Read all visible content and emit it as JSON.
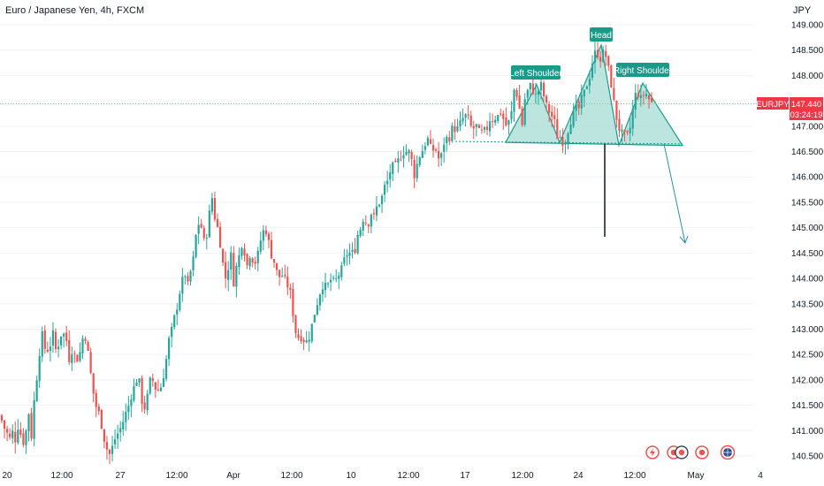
{
  "header": {
    "title": "Euro / Japanese Yen, 4h, FXCM",
    "currency": "JPY"
  },
  "price_tag": {
    "symbol": "EURJPY",
    "price": "147.440",
    "countdown": "03:24:19"
  },
  "colors": {
    "up": "#26a69a",
    "down": "#ef5350",
    "pattern_fill": "#a7dcd4",
    "pattern_stroke": "#1a9b89",
    "label_bg": "#1a9b89",
    "price_line": "#f28b8b"
  },
  "annotations": {
    "left_shoulder": "Left Shoulder",
    "head": "Head",
    "right_shoulder": "Right Shoulder"
  },
  "event_icons": [
    "flash-icon",
    "flag-icon",
    "flag-icon",
    "flag-icon",
    "globe-icon"
  ],
  "chart_data": {
    "type": "candlestick",
    "title": "Euro / Japanese Yen, 4h, FXCM",
    "ylim": [
      140.4,
      149.2
    ],
    "y_ticks": [
      "149.000",
      "148.500",
      "148.000",
      "147.500",
      "147.000",
      "146.500",
      "146.000",
      "145.500",
      "145.000",
      "144.500",
      "144.000",
      "143.500",
      "143.000",
      "142.500",
      "142.000",
      "141.500",
      "141.000",
      "140.500"
    ],
    "x_ticks": [
      "20",
      "12:00",
      "27",
      "12:00",
      "Apr",
      "12:00",
      "10",
      "12:00",
      "17",
      "12:00",
      "24",
      "12:00",
      "May",
      "4"
    ],
    "last_price": 147.44,
    "neckline": [
      146.7,
      146.65
    ],
    "projection_target": 144.7,
    "close_path": [
      [
        0,
        141.3
      ],
      [
        6,
        141.0
      ],
      [
        10,
        140.9
      ],
      [
        12,
        140.8
      ],
      [
        14,
        141.0
      ],
      [
        16,
        140.7
      ],
      [
        18,
        140.9
      ],
      [
        20,
        141.1
      ],
      [
        24,
        140.9
      ],
      [
        28,
        140.7
      ],
      [
        30,
        141.1
      ],
      [
        33,
        141.4
      ],
      [
        36,
        140.8
      ],
      [
        39,
        141.7
      ],
      [
        42,
        142.1
      ],
      [
        45,
        142.6
      ],
      [
        48,
        142.9
      ],
      [
        51,
        142.6
      ],
      [
        54,
        142.6
      ],
      [
        57,
        142.7
      ],
      [
        60,
        142.9
      ],
      [
        63,
        142.6
      ],
      [
        66,
        142.7
      ],
      [
        69,
        142.9
      ],
      [
        72,
        142.9
      ],
      [
        75,
        142.8
      ],
      [
        78,
        142.4
      ],
      [
        81,
        142.6
      ],
      [
        84,
        142.5
      ],
      [
        87,
        142.4
      ],
      [
        90,
        142.5
      ],
      [
        93,
        142.8
      ],
      [
        96,
        142.9
      ],
      [
        99,
        142.6
      ],
      [
        102,
        142.2
      ],
      [
        105,
        141.8
      ],
      [
        108,
        141.5
      ],
      [
        111,
        141.4
      ],
      [
        114,
        141.2
      ],
      [
        117,
        140.9
      ],
      [
        120,
        140.7
      ],
      [
        123,
        140.5
      ],
      [
        126,
        140.6
      ],
      [
        129,
        140.8
      ],
      [
        132,
        140.9
      ],
      [
        135,
        141.0
      ],
      [
        138,
        141.1
      ],
      [
        141,
        141.3
      ],
      [
        144,
        141.4
      ],
      [
        147,
        141.6
      ],
      [
        150,
        141.8
      ],
      [
        153,
        141.9
      ],
      [
        156,
        142.1
      ],
      [
        159,
        141.8
      ],
      [
        162,
        141.4
      ],
      [
        165,
        141.5
      ],
      [
        168,
        141.8
      ],
      [
        171,
        142.1
      ],
      [
        174,
        141.9
      ],
      [
        177,
        141.8
      ],
      [
        180,
        141.8
      ],
      [
        183,
        141.9
      ],
      [
        186,
        142.2
      ],
      [
        189,
        142.5
      ],
      [
        192,
        142.9
      ],
      [
        195,
        143.0
      ],
      [
        198,
        143.3
      ],
      [
        201,
        143.5
      ],
      [
        204,
        143.8
      ],
      [
        207,
        144.0
      ],
      [
        210,
        144.1
      ],
      [
        213,
        143.8
      ],
      [
        216,
        144.2
      ],
      [
        219,
        144.4
      ],
      [
        222,
        144.9
      ],
      [
        225,
        145.1
      ],
      [
        228,
        145.0
      ],
      [
        231,
        144.7
      ],
      [
        234,
        144.9
      ],
      [
        237,
        145.3
      ],
      [
        240,
        145.6
      ],
      [
        243,
        145.2
      ],
      [
        246,
        145.0
      ],
      [
        249,
        144.7
      ],
      [
        252,
        144.3
      ],
      [
        255,
        144.0
      ],
      [
        258,
        144.2
      ],
      [
        261,
        144.5
      ],
      [
        264,
        143.9
      ],
      [
        267,
        144.2
      ],
      [
        270,
        144.4
      ],
      [
        273,
        144.7
      ],
      [
        276,
        144.6
      ],
      [
        279,
        144.2
      ],
      [
        282,
        144.5
      ],
      [
        285,
        144.4
      ],
      [
        288,
        144.3
      ],
      [
        291,
        144.4
      ],
      [
        294,
        144.7
      ],
      [
        297,
        144.9
      ],
      [
        300,
        145.0
      ],
      [
        303,
        144.8
      ],
      [
        306,
        144.5
      ],
      [
        309,
        144.4
      ],
      [
        312,
        144.2
      ],
      [
        315,
        144.0
      ],
      [
        318,
        144.1
      ],
      [
        321,
        144.0
      ],
      [
        324,
        143.9
      ],
      [
        327,
        143.8
      ],
      [
        330,
        143.6
      ],
      [
        333,
        143.0
      ],
      [
        336,
        142.9
      ],
      [
        339,
        142.8
      ],
      [
        342,
        142.9
      ],
      [
        345,
        142.7
      ],
      [
        348,
        142.8
      ],
      [
        351,
        142.9
      ],
      [
        354,
        143.2
      ],
      [
        357,
        143.4
      ],
      [
        360,
        143.6
      ],
      [
        363,
        143.8
      ],
      [
        366,
        143.9
      ],
      [
        369,
        143.8
      ],
      [
        372,
        143.9
      ],
      [
        375,
        144.0
      ],
      [
        378,
        143.9
      ],
      [
        381,
        144.0
      ],
      [
        384,
        144.1
      ],
      [
        387,
        144.2
      ],
      [
        390,
        144.4
      ],
      [
        393,
        144.5
      ],
      [
        396,
        144.5
      ],
      [
        399,
        144.5
      ],
      [
        402,
        144.6
      ],
      [
        405,
        144.9
      ],
      [
        408,
        145.0
      ],
      [
        411,
        145.2
      ],
      [
        414,
        145.1
      ],
      [
        417,
        145.1
      ],
      [
        420,
        145.3
      ],
      [
        423,
        145.2
      ],
      [
        426,
        145.4
      ],
      [
        429,
        145.5
      ],
      [
        432,
        145.6
      ],
      [
        435,
        145.8
      ],
      [
        438,
        145.9
      ],
      [
        441,
        146.1
      ],
      [
        444,
        146.2
      ],
      [
        447,
        146.2
      ],
      [
        450,
        146.3
      ],
      [
        453,
        146.4
      ],
      [
        456,
        146.5
      ],
      [
        459,
        146.5
      ],
      [
        462,
        146.5
      ],
      [
        465,
        146.4
      ],
      [
        468,
        146.0
      ],
      [
        471,
        146.2
      ],
      [
        474,
        146.4
      ],
      [
        477,
        146.5
      ],
      [
        480,
        146.6
      ],
      [
        483,
        146.8
      ],
      [
        486,
        146.6
      ],
      [
        489,
        146.5
      ],
      [
        492,
        146.6
      ],
      [
        495,
        146.4
      ],
      [
        498,
        146.3
      ],
      [
        501,
        146.6
      ],
      [
        504,
        146.8
      ],
      [
        507,
        146.7
      ],
      [
        510,
        146.9
      ],
      [
        513,
        147.0
      ],
      [
        516,
        146.9
      ],
      [
        519,
        147.0
      ],
      [
        522,
        147.1
      ],
      [
        525,
        147.2
      ],
      [
        528,
        147.2
      ],
      [
        531,
        147.1
      ],
      [
        534,
        146.9
      ],
      [
        537,
        147.0
      ],
      [
        540,
        147.0
      ],
      [
        543,
        146.8
      ],
      [
        546,
        146.9
      ],
      [
        549,
        146.9
      ],
      [
        552,
        147.0
      ],
      [
        555,
        147.2
      ],
      [
        558,
        147.1
      ],
      [
        561,
        147.2
      ],
      [
        564,
        147.2
      ],
      [
        567,
        147.3
      ],
      [
        570,
        147.1
      ],
      [
        573,
        147.0
      ],
      [
        576,
        147.1
      ],
      [
        579,
        147.3
      ],
      [
        582,
        147.8
      ],
      [
        585,
        147.6
      ],
      [
        588,
        147.3
      ],
      [
        591,
        147.0
      ],
      [
        594,
        147.6
      ],
      [
        597,
        147.7
      ],
      [
        600,
        147.8
      ],
      [
        603,
        147.7
      ],
      [
        606,
        147.6
      ],
      [
        609,
        147.7
      ],
      [
        612,
        147.8
      ],
      [
        615,
        147.6
      ],
      [
        618,
        147.4
      ],
      [
        621,
        147.3
      ],
      [
        624,
        147.2
      ],
      [
        627,
        147.1
      ],
      [
        630,
        146.8
      ],
      [
        633,
        146.8
      ],
      [
        636,
        146.7
      ],
      [
        639,
        146.7
      ],
      [
        642,
        146.9
      ],
      [
        645,
        147.1
      ],
      [
        648,
        147.2
      ],
      [
        651,
        147.4
      ],
      [
        654,
        147.3
      ],
      [
        657,
        147.5
      ],
      [
        660,
        147.6
      ],
      [
        663,
        147.8
      ],
      [
        666,
        147.9
      ],
      [
        669,
        148.2
      ],
      [
        672,
        148.4
      ],
      [
        675,
        148.5
      ],
      [
        678,
        148.3
      ],
      [
        681,
        148.4
      ],
      [
        684,
        148.5
      ],
      [
        687,
        148.2
      ],
      [
        690,
        148.0
      ],
      [
        693,
        147.6
      ],
      [
        696,
        147.3
      ],
      [
        699,
        147.0
      ],
      [
        702,
        146.9
      ],
      [
        705,
        146.8
      ],
      [
        708,
        146.8
      ],
      [
        711,
        146.8
      ],
      [
        714,
        147.1
      ],
      [
        717,
        147.5
      ],
      [
        720,
        147.7
      ],
      [
        723,
        147.6
      ],
      [
        726,
        147.5
      ],
      [
        729,
        147.7
      ],
      [
        732,
        147.6
      ],
      [
        735,
        147.5
      ],
      [
        738,
        147.44
      ]
    ]
  }
}
